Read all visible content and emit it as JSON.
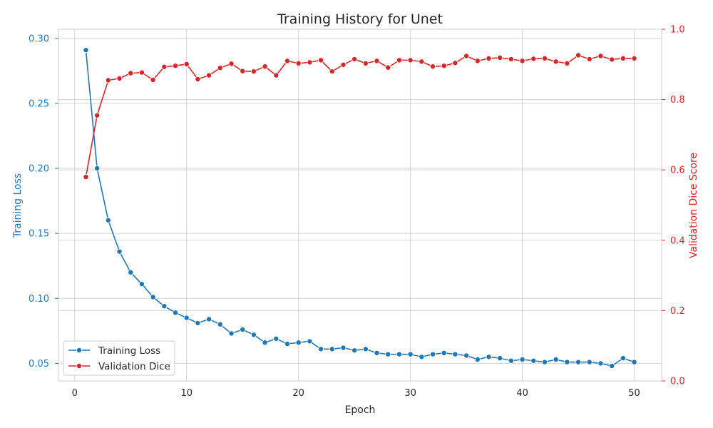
{
  "chart_data": {
    "type": "line",
    "title": "Training History for Unet",
    "xlabel": "Epoch",
    "ylabel_left": "Training Loss",
    "ylabel_right": "Validation Dice Score",
    "xlim": [
      -1.45,
      52.45
    ],
    "ylim_left": [
      0.0365,
      0.307
    ],
    "ylim_right": [
      0.0,
      1.0
    ],
    "x_ticks": [
      0,
      10,
      20,
      30,
      40,
      50
    ],
    "y_left_ticks": [
      0.05,
      0.1,
      0.15,
      0.2,
      0.25,
      0.3
    ],
    "y_left_tick_labels": [
      "0.05",
      "0.10",
      "0.15",
      "0.20",
      "0.25",
      "0.30"
    ],
    "y_right_ticks": [
      0.0,
      0.2,
      0.4,
      0.6,
      0.8,
      1.0
    ],
    "y_right_tick_labels": [
      "0.0",
      "0.2",
      "0.4",
      "0.6",
      "0.8",
      "1.0"
    ],
    "grid": true,
    "legend_position": "lower-left",
    "series": [
      {
        "name": "Training Loss",
        "axis": "left",
        "color": "#1f77b4",
        "x": [
          1,
          2,
          3,
          4,
          5,
          6,
          7,
          8,
          9,
          10,
          11,
          12,
          13,
          14,
          15,
          16,
          17,
          18,
          19,
          20,
          21,
          22,
          23,
          24,
          25,
          26,
          27,
          28,
          29,
          30,
          31,
          32,
          33,
          34,
          35,
          36,
          37,
          38,
          39,
          40,
          41,
          42,
          43,
          44,
          45,
          46,
          47,
          48,
          49,
          50
        ],
        "values": [
          0.291,
          0.2,
          0.16,
          0.136,
          0.12,
          0.111,
          0.101,
          0.094,
          0.089,
          0.085,
          0.081,
          0.084,
          0.08,
          0.073,
          0.076,
          0.072,
          0.066,
          0.069,
          0.065,
          0.066,
          0.067,
          0.061,
          0.061,
          0.062,
          0.06,
          0.061,
          0.058,
          0.057,
          0.057,
          0.057,
          0.055,
          0.057,
          0.058,
          0.057,
          0.056,
          0.053,
          0.055,
          0.054,
          0.052,
          0.053,
          0.052,
          0.051,
          0.053,
          0.051,
          0.051,
          0.051,
          0.05,
          0.048,
          0.054,
          0.051
        ]
      },
      {
        "name": "Validation Dice",
        "axis": "right",
        "color": "#d62728",
        "x": [
          1,
          2,
          3,
          4,
          5,
          6,
          7,
          8,
          9,
          10,
          11,
          12,
          13,
          14,
          15,
          16,
          17,
          18,
          19,
          20,
          21,
          22,
          23,
          24,
          25,
          26,
          27,
          28,
          29,
          30,
          31,
          32,
          33,
          34,
          35,
          36,
          37,
          38,
          39,
          40,
          41,
          42,
          43,
          44,
          45,
          46,
          47,
          48,
          49,
          50
        ],
        "values": [
          0.58,
          0.755,
          0.855,
          0.86,
          0.875,
          0.877,
          0.856,
          0.893,
          0.896,
          0.901,
          0.858,
          0.869,
          0.89,
          0.902,
          0.881,
          0.88,
          0.894,
          0.869,
          0.91,
          0.903,
          0.906,
          0.912,
          0.88,
          0.899,
          0.915,
          0.903,
          0.91,
          0.891,
          0.912,
          0.912,
          0.908,
          0.894,
          0.896,
          0.904,
          0.924,
          0.91,
          0.917,
          0.919,
          0.915,
          0.91,
          0.916,
          0.917,
          0.908,
          0.903,
          0.926,
          0.915,
          0.924,
          0.914,
          0.917,
          0.917
        ]
      }
    ]
  }
}
